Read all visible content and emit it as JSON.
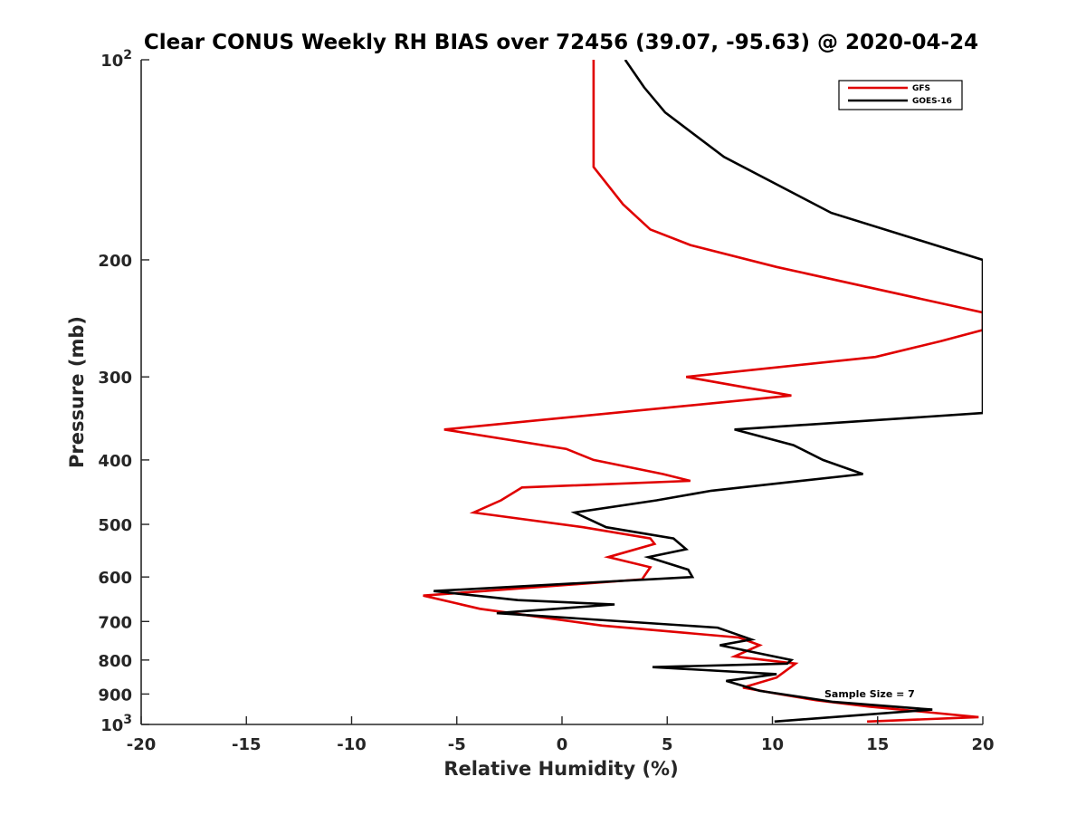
{
  "chart_data": {
    "type": "line",
    "title": "Clear CONUS Weekly RH BIAS over 72456 (39.07, -95.63) @ 2020-04-24",
    "xlabel": "Relative Humidity (%)",
    "ylabel": "Pressure (mb)",
    "xlim": [
      -20,
      20
    ],
    "ylim": [
      100,
      1000
    ],
    "y_scale": "log",
    "y_reversed": true,
    "x_ticks": [
      -20,
      -15,
      -10,
      -5,
      0,
      5,
      10,
      15,
      20
    ],
    "x_tick_labels": [
      "-20",
      "-15",
      "-10",
      "-5",
      "0",
      "5",
      "10",
      "15",
      "20"
    ],
    "y_ticks": [
      100,
      200,
      300,
      400,
      500,
      600,
      700,
      800,
      900,
      1000
    ],
    "y_tick_labels": [
      {
        "base": "10",
        "sup": "2"
      },
      {
        "base": "200",
        "sup": ""
      },
      {
        "base": "300",
        "sup": ""
      },
      {
        "base": "400",
        "sup": ""
      },
      {
        "base": "500",
        "sup": ""
      },
      {
        "base": "600",
        "sup": ""
      },
      {
        "base": "700",
        "sup": ""
      },
      {
        "base": "800",
        "sup": ""
      },
      {
        "base": "900",
        "sup": ""
      },
      {
        "base": "10",
        "sup": "3"
      }
    ],
    "legend_position": "top-right",
    "annotation": "Sample Size = 7",
    "series": [
      {
        "name": "GFS",
        "color": "#e00000",
        "x": [
          1.5,
          1.5,
          1.5,
          2.9,
          4.2,
          6.1,
          10.2,
          20.0,
          20.0,
          18.0,
          14.9,
          5.9,
          10.9,
          -5.6,
          0.2,
          1.5,
          4.8,
          6.1,
          -1.9,
          -2.9,
          -4.2,
          1.0,
          4.2,
          4.4,
          2.2,
          4.2,
          3.8,
          -6.6,
          -3.9,
          1.9,
          8.4,
          9.4,
          8.2,
          11.1,
          10.2,
          8.6,
          10.3,
          12.1,
          14.6,
          19.8,
          14.5
        ],
        "y": [
          100,
          120,
          145,
          165,
          180,
          190,
          205,
          240,
          255,
          265,
          280,
          300,
          320,
          360,
          385,
          400,
          420,
          430,
          440,
          460,
          480,
          505,
          525,
          535,
          560,
          580,
          605,
          640,
          670,
          710,
          740,
          760,
          790,
          810,
          850,
          880,
          900,
          920,
          940,
          975,
          990
        ]
      },
      {
        "name": "GOES-16",
        "color": "#000000",
        "x": [
          3.0,
          3.9,
          4.9,
          7.7,
          12.8,
          20.0,
          20.0,
          8.2,
          11.0,
          12.4,
          14.3,
          7.1,
          4.5,
          0.6,
          2.1,
          5.3,
          5.9,
          4.1,
          6.0,
          6.2,
          -6.1,
          -2.1,
          2.5,
          -3.1,
          7.4,
          9.0,
          7.5,
          10.9,
          10.7,
          4.3,
          10.2,
          7.8,
          9.4,
          12.9,
          17.6,
          10.1
        ],
        "y": [
          100,
          110,
          120,
          140,
          170,
          200,
          340,
          360,
          380,
          400,
          420,
          445,
          460,
          480,
          505,
          525,
          545,
          560,
          585,
          600,
          630,
          650,
          660,
          680,
          715,
          745,
          760,
          800,
          810,
          820,
          840,
          860,
          890,
          925,
          950,
          990
        ]
      }
    ]
  }
}
